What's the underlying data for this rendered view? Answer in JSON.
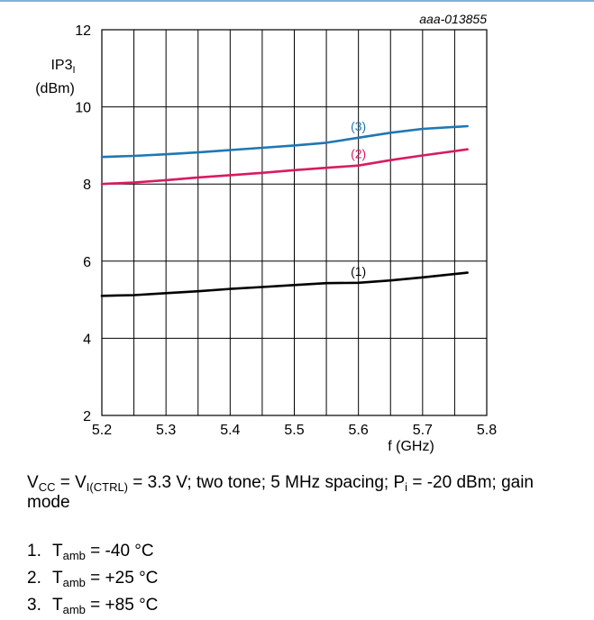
{
  "chart_data": {
    "type": "line",
    "id_label": "aaa-013855",
    "ylabel": "IP3",
    "ylabel_sub": "I",
    "ylabel_unit": "(dBm)",
    "xlabel": "f (GHz)",
    "xlim": [
      5.2,
      5.8
    ],
    "ylim": [
      2,
      12
    ],
    "x_ticks": [
      "5.2",
      "5.3",
      "5.4",
      "5.5",
      "5.6",
      "5.7",
      "5.8"
    ],
    "y_ticks": [
      "2",
      "4",
      "6",
      "8",
      "10",
      "12"
    ],
    "grid": true,
    "series": [
      {
        "name": "(1)",
        "color": "#000000",
        "x": [
          5.2,
          5.25,
          5.3,
          5.35,
          5.4,
          5.45,
          5.5,
          5.55,
          5.6,
          5.65,
          5.7,
          5.77
        ],
        "y": [
          5.1,
          5.12,
          5.17,
          5.22,
          5.28,
          5.33,
          5.38,
          5.43,
          5.44,
          5.5,
          5.58,
          5.7
        ]
      },
      {
        "name": "(2)",
        "color": "#d81b60",
        "x": [
          5.2,
          5.25,
          5.3,
          5.35,
          5.4,
          5.45,
          5.5,
          5.55,
          5.6,
          5.65,
          5.7,
          5.77
        ],
        "y": [
          8.0,
          8.04,
          8.1,
          8.17,
          8.23,
          8.29,
          8.36,
          8.42,
          8.48,
          8.62,
          8.74,
          8.9
        ]
      },
      {
        "name": "(3)",
        "color": "#1f77b4",
        "x": [
          5.2,
          5.25,
          5.3,
          5.35,
          5.4,
          5.45,
          5.5,
          5.55,
          5.6,
          5.65,
          5.7,
          5.77
        ],
        "y": [
          8.7,
          8.73,
          8.77,
          8.82,
          8.88,
          8.94,
          9.0,
          9.07,
          9.2,
          9.33,
          9.43,
          9.5
        ]
      }
    ]
  },
  "caption": {
    "vcc": "V",
    "vcc_sub": "CC",
    "eq1": " = V",
    "vctrl_sub": "I(CTRL)",
    "mid": " = 3.3 V; two tone; 5 MHz spacing; P",
    "pi_sub": "i",
    "end": " = -20 dBm; gain mode"
  },
  "notes": [
    {
      "num": "1.",
      "sym": "T",
      "sub": "amb",
      "value": " = -40 °C"
    },
    {
      "num": "2.",
      "sym": "T",
      "sub": "amb",
      "value": " = +25 °C"
    },
    {
      "num": "3.",
      "sym": "T",
      "sub": "amb",
      "value": " = +85 °C"
    }
  ]
}
